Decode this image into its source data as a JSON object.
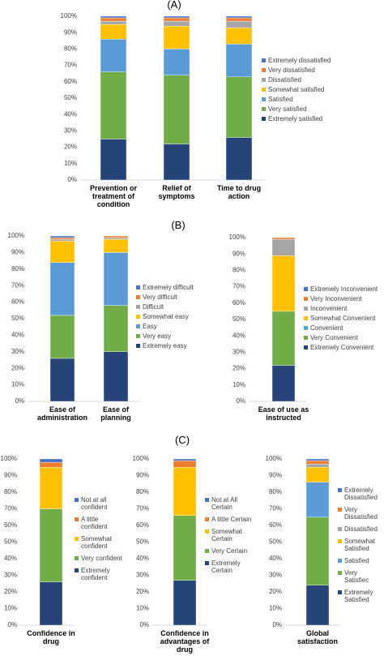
{
  "chart_data": [
    {
      "type": "bar",
      "title": "(A)",
      "categories": [
        "Prevention or treatment of condition",
        "Relief of symptoms",
        "Time to drug action"
      ],
      "series": [
        {
          "name": "Extremely satisfied",
          "color": "#264478",
          "values": [
            25,
            22,
            26
          ]
        },
        {
          "name": "Very satisfied",
          "color": "#70ad47",
          "values": [
            41,
            42,
            37
          ]
        },
        {
          "name": "Satisfied",
          "color": "#5b9bd5",
          "values": [
            20,
            16,
            20
          ]
        },
        {
          "name": "Somewhat satisfied",
          "color": "#ffc000",
          "values": [
            9,
            14,
            10
          ]
        },
        {
          "name": "Dissatisfied",
          "color": "#a5a5a5",
          "values": [
            2,
            3,
            4
          ]
        },
        {
          "name": "Very dissatisfied",
          "color": "#ed7d31",
          "values": [
            2,
            2,
            2
          ]
        },
        {
          "name": "Extremely dissatisfied",
          "color": "#4472c4",
          "values": [
            1,
            1,
            1
          ]
        }
      ],
      "ylim": [
        0,
        100
      ],
      "yticks": [
        {
          "value": 0,
          "label": "0%"
        },
        {
          "value": 10,
          "label": "10%"
        },
        {
          "value": 20,
          "label": "20%"
        },
        {
          "value": 30,
          "label": "30%"
        },
        {
          "value": 40,
          "label": "40%"
        },
        {
          "value": 50,
          "label": "50%"
        },
        {
          "value": 60,
          "label": "60%"
        },
        {
          "value": 70,
          "label": "70%"
        },
        {
          "value": 80,
          "label": "80%"
        },
        {
          "value": 90,
          "label": "90%"
        },
        {
          "value": 100,
          "label": "100%"
        }
      ]
    },
    {
      "type": "bar",
      "title": "(B)",
      "categories": [
        "Ease of administration",
        "Ease of planning"
      ],
      "series": [
        {
          "name": "Extremely easy",
          "color": "#264478",
          "values": [
            26,
            30
          ]
        },
        {
          "name": "Very easy",
          "color": "#70ad47",
          "values": [
            26,
            28
          ]
        },
        {
          "name": "Easy",
          "color": "#5b9bd5",
          "values": [
            32,
            32
          ]
        },
        {
          "name": "Somewhat easy",
          "color": "#ffc000",
          "values": [
            13,
            8
          ]
        },
        {
          "name": "Difficult",
          "color": "#a5a5a5",
          "values": [
            1,
            1
          ]
        },
        {
          "name": "Very difficult",
          "color": "#ed7d31",
          "values": [
            1,
            1
          ]
        },
        {
          "name": "Extremely difficult",
          "color": "#4472c4",
          "values": [
            1,
            0
          ]
        }
      ],
      "ylim": [
        0,
        100
      ],
      "yticks": [
        {
          "value": 0,
          "label": "0%"
        },
        {
          "value": 10,
          "label": "10%"
        },
        {
          "value": 20,
          "label": "20%"
        },
        {
          "value": 30,
          "label": "30%"
        },
        {
          "value": 40,
          "label": "40%"
        },
        {
          "value": 50,
          "label": "50%"
        },
        {
          "value": 60,
          "label": "60%"
        },
        {
          "value": 70,
          "label": "70%"
        },
        {
          "value": 80,
          "label": "80%"
        },
        {
          "value": 90,
          "label": "90%"
        },
        {
          "value": 100,
          "label": "100%"
        }
      ]
    },
    {
      "type": "bar",
      "categories": [
        "Ease of use as instructed"
      ],
      "series": [
        {
          "name": "Extremely Convenient",
          "color": "#264478",
          "values": [
            22
          ]
        },
        {
          "name": "Very Convenient",
          "color": "#70ad47",
          "values": [
            33
          ]
        },
        {
          "name": "Convenient",
          "color": "#4bacc6",
          "values": [
            0
          ]
        },
        {
          "name": "Somewhat Convenient",
          "color": "#ffc000",
          "values": [
            34
          ]
        },
        {
          "name": "Inconvenient",
          "color": "#a5a5a5",
          "values": [
            10
          ]
        },
        {
          "name": "Very Inconvenient",
          "color": "#ed7d31",
          "values": [
            1
          ]
        },
        {
          "name": "Extremely Inconvenient",
          "color": "#4472c4",
          "values": [
            0
          ]
        }
      ],
      "ylim": [
        0,
        100
      ],
      "yticks": [
        {
          "value": 0,
          "label": "0%"
        },
        {
          "value": 10,
          "label": "10%"
        },
        {
          "value": 20,
          "label": "20%"
        },
        {
          "value": 30,
          "label": "30%"
        },
        {
          "value": 40,
          "label": "40%"
        },
        {
          "value": 50,
          "label": "50%"
        },
        {
          "value": 60,
          "label": "60%"
        },
        {
          "value": 70,
          "label": "70%"
        },
        {
          "value": 80,
          "label": "80%"
        },
        {
          "value": 90,
          "label": "90%"
        },
        {
          "value": 100,
          "label": "100%"
        }
      ]
    },
    {
      "type": "bar",
      "title": "(C)",
      "categories": [
        "Confidence in drug"
      ],
      "series": [
        {
          "name": "Extremely confident",
          "color": "#264478",
          "values": [
            26
          ]
        },
        {
          "name": "Very confident",
          "color": "#70ad47",
          "values": [
            44
          ]
        },
        {
          "name": "Somewhat confident",
          "color": "#ffc000",
          "values": [
            25
          ]
        },
        {
          "name": "A little confident",
          "color": "#ed7d31",
          "values": [
            3
          ]
        },
        {
          "name": "Not at all confident",
          "color": "#4472c4",
          "values": [
            2
          ]
        }
      ],
      "ylim": [
        0,
        100
      ],
      "yticks": [
        {
          "value": 0,
          "label": "0%"
        },
        {
          "value": 10,
          "label": "10%"
        },
        {
          "value": 20,
          "label": "20%"
        },
        {
          "value": 30,
          "label": "30%"
        },
        {
          "value": 40,
          "label": "40%"
        },
        {
          "value": 50,
          "label": "50%"
        },
        {
          "value": 60,
          "label": "60%"
        },
        {
          "value": 70,
          "label": "70%"
        },
        {
          "value": 80,
          "label": "80%"
        },
        {
          "value": 90,
          "label": "90%"
        },
        {
          "value": 100,
          "label": "100%"
        }
      ]
    },
    {
      "type": "bar",
      "categories": [
        "Confidence in advantages of drug"
      ],
      "series": [
        {
          "name": "Extremely Certain",
          "color": "#264478",
          "values": [
            27
          ]
        },
        {
          "name": "Very Certain",
          "color": "#70ad47",
          "values": [
            39
          ]
        },
        {
          "name": "Somewhat Certain",
          "color": "#ffc000",
          "values": [
            29
          ]
        },
        {
          "name": "A little Certain",
          "color": "#ed7d31",
          "values": [
            4
          ]
        },
        {
          "name": "Not at All Certain",
          "color": "#4472c4",
          "values": [
            1
          ]
        }
      ],
      "ylim": [
        0,
        100
      ],
      "yticks": [
        {
          "value": 0,
          "label": "0%"
        },
        {
          "value": 10,
          "label": "10%"
        },
        {
          "value": 20,
          "label": "20%"
        },
        {
          "value": 30,
          "label": "30%"
        },
        {
          "value": 40,
          "label": "40%"
        },
        {
          "value": 50,
          "label": "50%"
        },
        {
          "value": 60,
          "label": "60%"
        },
        {
          "value": 70,
          "label": "70%"
        },
        {
          "value": 80,
          "label": "80%"
        },
        {
          "value": 90,
          "label": "90%"
        },
        {
          "value": 100,
          "label": "100%"
        }
      ]
    },
    {
      "type": "bar",
      "categories": [
        "Global satisfaction"
      ],
      "series": [
        {
          "name": "Extremely Satisfied",
          "color": "#264478",
          "values": [
            24
          ]
        },
        {
          "name": "Very Satisfiec",
          "color": "#70ad47",
          "values": [
            41
          ]
        },
        {
          "name": "Satisfied",
          "color": "#5b9bd5",
          "values": [
            21
          ]
        },
        {
          "name": "Somewhat Satisfied",
          "color": "#ffc000",
          "values": [
            9
          ]
        },
        {
          "name": "Dissatisfied",
          "color": "#a5a5a5",
          "values": [
            2
          ]
        },
        {
          "name": "Very Dissatisfied",
          "color": "#ed7d31",
          "values": [
            2
          ]
        },
        {
          "name": "Extremely Dissatisfied",
          "color": "#4472c4",
          "values": [
            1
          ]
        }
      ],
      "ylim": [
        0,
        100
      ],
      "yticks": [
        {
          "value": 0,
          "label": "0%"
        },
        {
          "value": 10,
          "label": "10%"
        },
        {
          "value": 20,
          "label": "20%"
        },
        {
          "value": 30,
          "label": "30%"
        },
        {
          "value": 40,
          "label": "40%"
        },
        {
          "value": 50,
          "label": "50%"
        },
        {
          "value": 60,
          "label": "60%"
        },
        {
          "value": 70,
          "label": "70%"
        },
        {
          "value": 80,
          "label": "80%"
        },
        {
          "value": 90,
          "label": "90%"
        },
        {
          "value": 100,
          "label": "100%"
        }
      ]
    }
  ]
}
